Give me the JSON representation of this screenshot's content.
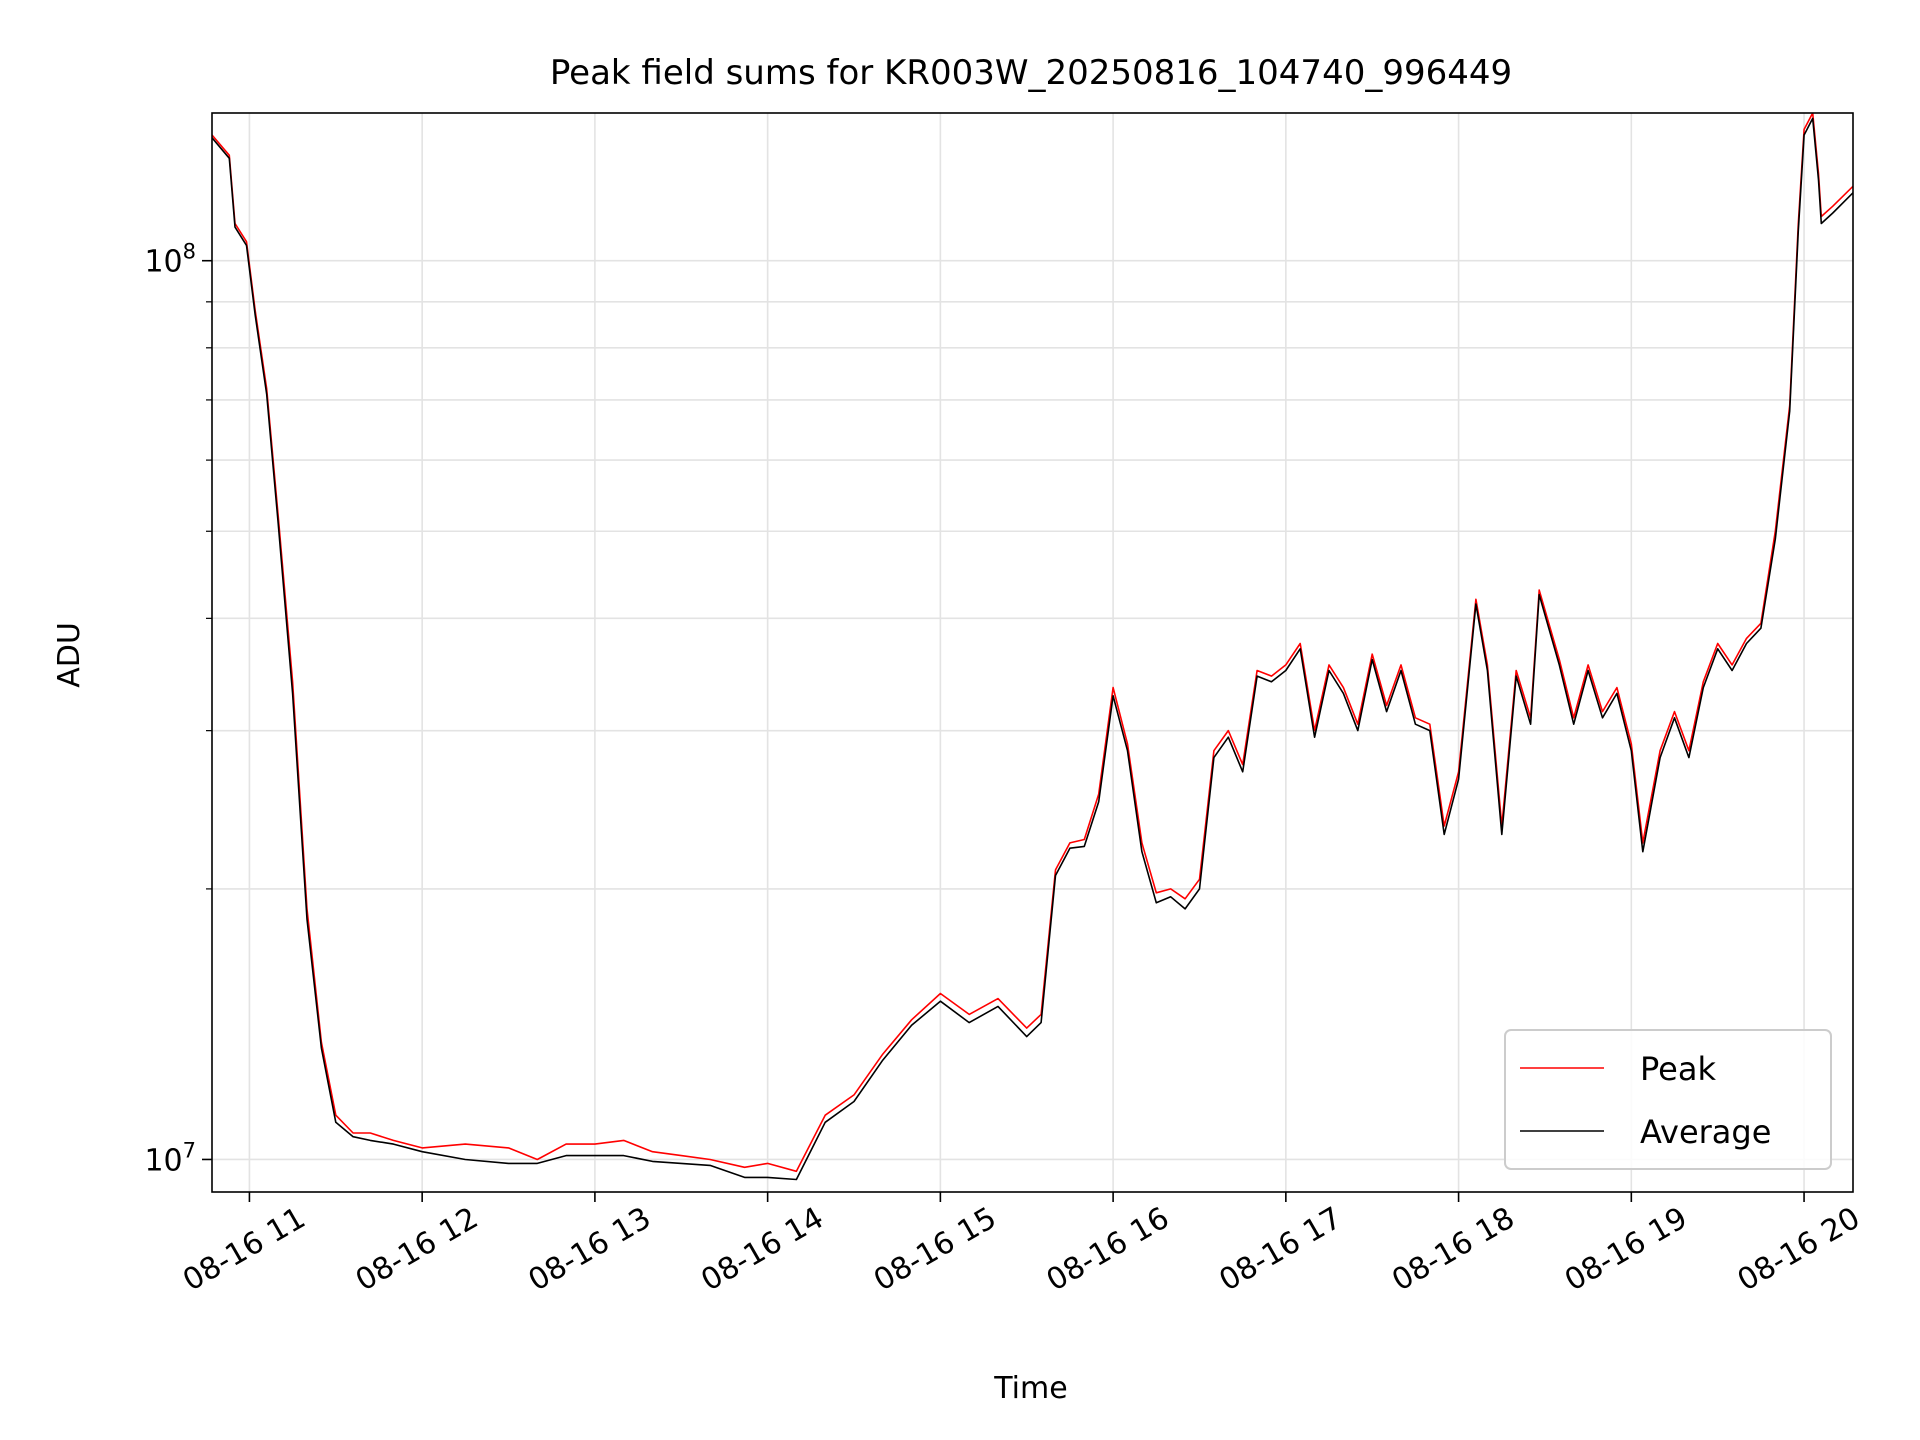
{
  "chart_data": {
    "type": "line",
    "title": "Peak field sums for KR003W_20250816_104740_996449",
    "xlabel": "Time",
    "ylabel": "ADU",
    "y_scale": "log",
    "ylim": [
      9200000,
      146000000
    ],
    "xlim": [
      "2025-08-16 10:47",
      "2025-08-16 20:17"
    ],
    "x_ticks": [
      "2025-08-16 11:00",
      "2025-08-16 12:00",
      "2025-08-16 13:00",
      "2025-08-16 14:00",
      "2025-08-16 15:00",
      "2025-08-16 16:00",
      "2025-08-16 17:00",
      "2025-08-16 18:00",
      "2025-08-16 19:00",
      "2025-08-16 20:00"
    ],
    "x_tick_labels": [
      "08-16 11",
      "08-16 12",
      "08-16 13",
      "08-16 14",
      "08-16 15",
      "08-16 16",
      "08-16 17",
      "08-16 18",
      "08-16 19",
      "08-16 20"
    ],
    "y_major_ticks": [
      10000000,
      100000000
    ],
    "y_tick_labels": [
      {
        "base": "10",
        "exp": "7"
      },
      {
        "base": "10",
        "exp": "8"
      }
    ],
    "y_minor_ticks": [
      20000000,
      30000000,
      40000000,
      50000000,
      60000000,
      70000000,
      80000000,
      90000000
    ],
    "grid": true,
    "legend_position": "bottom-right",
    "series": [
      {
        "name": "Peak",
        "color": "#ff0000",
        "x": [
          "2025-08-16 10:47",
          "2025-08-16 10:53",
          "2025-08-16 10:55",
          "2025-08-16 10:59",
          "2025-08-16 11:02",
          "2025-08-16 11:06",
          "2025-08-16 11:10",
          "2025-08-16 11:15",
          "2025-08-16 11:20",
          "2025-08-16 11:25",
          "2025-08-16 11:30",
          "2025-08-16 11:36",
          "2025-08-16 11:42",
          "2025-08-16 11:50",
          "2025-08-16 12:00",
          "2025-08-16 12:15",
          "2025-08-16 12:30",
          "2025-08-16 12:40",
          "2025-08-16 12:50",
          "2025-08-16 13:00",
          "2025-08-16 13:10",
          "2025-08-16 13:20",
          "2025-08-16 13:30",
          "2025-08-16 13:40",
          "2025-08-16 13:52",
          "2025-08-16 14:00",
          "2025-08-16 14:10",
          "2025-08-16 14:20",
          "2025-08-16 14:30",
          "2025-08-16 14:40",
          "2025-08-16 14:50",
          "2025-08-16 15:00",
          "2025-08-16 15:10",
          "2025-08-16 15:20",
          "2025-08-16 15:30",
          "2025-08-16 15:35",
          "2025-08-16 15:40",
          "2025-08-16 15:45",
          "2025-08-16 15:50",
          "2025-08-16 15:55",
          "2025-08-16 16:00",
          "2025-08-16 16:05",
          "2025-08-16 16:10",
          "2025-08-16 16:15",
          "2025-08-16 16:20",
          "2025-08-16 16:25",
          "2025-08-16 16:30",
          "2025-08-16 16:35",
          "2025-08-16 16:40",
          "2025-08-16 16:45",
          "2025-08-16 16:50",
          "2025-08-16 16:55",
          "2025-08-16 17:00",
          "2025-08-16 17:05",
          "2025-08-16 17:10",
          "2025-08-16 17:15",
          "2025-08-16 17:20",
          "2025-08-16 17:25",
          "2025-08-16 17:30",
          "2025-08-16 17:35",
          "2025-08-16 17:40",
          "2025-08-16 17:45",
          "2025-08-16 17:50",
          "2025-08-16 17:55",
          "2025-08-16 18:00",
          "2025-08-16 18:06",
          "2025-08-16 18:10",
          "2025-08-16 18:15",
          "2025-08-16 18:20",
          "2025-08-16 18:25",
          "2025-08-16 18:28",
          "2025-08-16 18:35",
          "2025-08-16 18:40",
          "2025-08-16 18:45",
          "2025-08-16 18:50",
          "2025-08-16 18:55",
          "2025-08-16 19:00",
          "2025-08-16 19:04",
          "2025-08-16 19:10",
          "2025-08-16 19:15",
          "2025-08-16 19:20",
          "2025-08-16 19:25",
          "2025-08-16 19:30",
          "2025-08-16 19:35",
          "2025-08-16 19:40",
          "2025-08-16 19:45",
          "2025-08-16 19:50",
          "2025-08-16 19:55",
          "2025-08-16 19:58",
          "2025-08-16 20:00",
          "2025-08-16 20:03",
          "2025-08-16 20:05",
          "2025-08-16 20:06",
          "2025-08-16 20:10",
          "2025-08-16 20:17"
        ],
        "y": [
          138000000,
          131000000,
          110000000,
          105000000,
          88000000,
          72000000,
          52000000,
          34000000,
          19000000,
          13500000,
          11200000,
          10700000,
          10700000,
          10500000,
          10300000,
          10400000,
          10300000,
          10000000,
          10400000,
          10400000,
          10500000,
          10200000,
          10100000,
          10000000,
          9800000,
          9900000,
          9700000,
          11200000,
          11800000,
          13100000,
          14300000,
          15300000,
          14500000,
          15100000,
          14000000,
          14500000,
          21000000,
          22500000,
          22700000,
          25500000,
          33500000,
          29000000,
          22500000,
          19800000,
          20000000,
          19500000,
          20500000,
          28500000,
          30000000,
          27500000,
          35000000,
          34500000,
          35500000,
          37500000,
          30000000,
          35500000,
          33500000,
          30500000,
          36500000,
          32000000,
          35500000,
          31000000,
          30500000,
          23500000,
          27000000,
          42000000,
          35500000,
          23500000,
          35000000,
          31000000,
          43000000,
          36000000,
          31000000,
          35500000,
          31500000,
          33500000,
          29000000,
          22500000,
          28500000,
          31500000,
          28500000,
          34000000,
          37500000,
          35500000,
          38000000,
          39500000,
          50000000,
          69000000,
          110000000,
          140000000,
          146000000,
          125000000,
          112000000,
          115000000,
          121000000
        ]
      },
      {
        "name": "Average",
        "color": "#000000",
        "x": [
          "2025-08-16 10:47",
          "2025-08-16 10:53",
          "2025-08-16 10:55",
          "2025-08-16 10:59",
          "2025-08-16 11:02",
          "2025-08-16 11:06",
          "2025-08-16 11:10",
          "2025-08-16 11:15",
          "2025-08-16 11:20",
          "2025-08-16 11:25",
          "2025-08-16 11:30",
          "2025-08-16 11:36",
          "2025-08-16 11:42",
          "2025-08-16 11:50",
          "2025-08-16 12:00",
          "2025-08-16 12:15",
          "2025-08-16 12:30",
          "2025-08-16 12:40",
          "2025-08-16 12:50",
          "2025-08-16 13:00",
          "2025-08-16 13:10",
          "2025-08-16 13:20",
          "2025-08-16 13:30",
          "2025-08-16 13:40",
          "2025-08-16 13:52",
          "2025-08-16 14:00",
          "2025-08-16 14:10",
          "2025-08-16 14:20",
          "2025-08-16 14:30",
          "2025-08-16 14:40",
          "2025-08-16 14:50",
          "2025-08-16 15:00",
          "2025-08-16 15:10",
          "2025-08-16 15:20",
          "2025-08-16 15:30",
          "2025-08-16 15:35",
          "2025-08-16 15:40",
          "2025-08-16 15:45",
          "2025-08-16 15:50",
          "2025-08-16 15:55",
          "2025-08-16 16:00",
          "2025-08-16 16:05",
          "2025-08-16 16:10",
          "2025-08-16 16:15",
          "2025-08-16 16:20",
          "2025-08-16 16:25",
          "2025-08-16 16:30",
          "2025-08-16 16:35",
          "2025-08-16 16:40",
          "2025-08-16 16:45",
          "2025-08-16 16:50",
          "2025-08-16 16:55",
          "2025-08-16 17:00",
          "2025-08-16 17:05",
          "2025-08-16 17:10",
          "2025-08-16 17:15",
          "2025-08-16 17:20",
          "2025-08-16 17:25",
          "2025-08-16 17:30",
          "2025-08-16 17:35",
          "2025-08-16 17:40",
          "2025-08-16 17:45",
          "2025-08-16 17:50",
          "2025-08-16 17:55",
          "2025-08-16 18:00",
          "2025-08-16 18:06",
          "2025-08-16 18:10",
          "2025-08-16 18:15",
          "2025-08-16 18:20",
          "2025-08-16 18:25",
          "2025-08-16 18:28",
          "2025-08-16 18:35",
          "2025-08-16 18:40",
          "2025-08-16 18:45",
          "2025-08-16 18:50",
          "2025-08-16 18:55",
          "2025-08-16 19:00",
          "2025-08-16 19:04",
          "2025-08-16 19:10",
          "2025-08-16 19:15",
          "2025-08-16 19:20",
          "2025-08-16 19:25",
          "2025-08-16 19:30",
          "2025-08-16 19:35",
          "2025-08-16 19:40",
          "2025-08-16 19:45",
          "2025-08-16 19:50",
          "2025-08-16 19:55",
          "2025-08-16 19:58",
          "2025-08-16 20:00",
          "2025-08-16 20:03",
          "2025-08-16 20:05",
          "2025-08-16 20:06",
          "2025-08-16 20:10",
          "2025-08-16 20:17"
        ],
        "y": [
          137000000,
          130000000,
          109000000,
          104000000,
          87000000,
          71000000,
          51000000,
          33000000,
          18500000,
          13300000,
          11000000,
          10600000,
          10500000,
          10400000,
          10200000,
          10000000,
          9900000,
          9900000,
          10100000,
          10100000,
          10100000,
          9950000,
          9900000,
          9850000,
          9550000,
          9550000,
          9500000,
          11000000,
          11600000,
          12900000,
          14100000,
          15000000,
          14200000,
          14800000,
          13700000,
          14200000,
          20700000,
          22200000,
          22300000,
          25000000,
          32800000,
          28500000,
          22000000,
          19300000,
          19600000,
          19000000,
          20000000,
          28000000,
          29500000,
          27000000,
          34500000,
          34000000,
          35000000,
          37000000,
          29500000,
          35000000,
          33000000,
          30000000,
          36000000,
          31500000,
          35000000,
          30500000,
          30000000,
          23000000,
          26500000,
          41500000,
          35000000,
          23000000,
          34500000,
          30500000,
          42500000,
          35500000,
          30500000,
          35000000,
          31000000,
          33000000,
          28500000,
          22000000,
          28000000,
          31000000,
          28000000,
          33500000,
          37000000,
          35000000,
          37500000,
          39000000,
          49000000,
          68000000,
          108000000,
          138000000,
          144000000,
          123000000,
          110000000,
          113000000,
          119000000
        ]
      }
    ]
  }
}
